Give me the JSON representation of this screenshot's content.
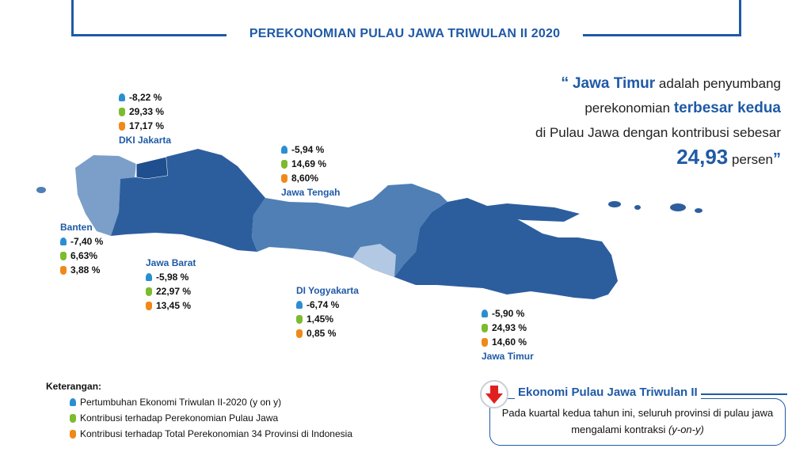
{
  "header": {
    "title": "PEREKONOMIAN PULAU JAWA TRIWULAN II 2020"
  },
  "colors": {
    "accent": "#1f5aa6",
    "dark_blue": "#2c5e9e",
    "mid_blue": "#4f7fb5",
    "light_blue": "#7b9fc9",
    "growth_icon": "#2a8fd0",
    "jawa_icon": "#7dbb2e",
    "nasional_icon": "#ef8a1a",
    "down_arrow": "#e02020"
  },
  "quote": {
    "open_mark": "“",
    "highlight_province": "Jawa Timur",
    "text1": "adalah penyumbang",
    "text2": "perekonomian",
    "highlight_rank": "terbesar kedua",
    "text3": "di Pulau Jawa dengan kontribusi sebesar",
    "value": "24,93",
    "unit": "persen",
    "close_mark": "”"
  },
  "provinces": {
    "dki": {
      "name": "DKI Jakarta",
      "growth": "-8,22 %",
      "jawa": "29,33 %",
      "nasional": "17,17 %"
    },
    "jateng": {
      "name": "Jawa Tengah",
      "growth": "-5,94 %",
      "jawa": "14,69 %",
      "nasional": "8,60%"
    },
    "banten": {
      "name": "Banten",
      "growth": "-7,40 %",
      "jawa": "6,63%",
      "nasional": "3,88 %"
    },
    "jabar": {
      "name": "Jawa Barat",
      "growth": "-5,98 %",
      "jawa": "22,97 %",
      "nasional": "13,45 %"
    },
    "diy": {
      "name": "DI Yogyakarta",
      "growth": "-6,74 %",
      "jawa": "1,45%",
      "nasional": "0,85 %"
    },
    "jatim": {
      "name": "Jawa Timur",
      "growth": "-5,90 %",
      "jawa": "24,93 %",
      "nasional": "14,60 %"
    }
  },
  "legend": {
    "heading": "Keterangan:",
    "growth": "Pertumbuhan Ekonomi Triwulan II-2020 (y on y)",
    "jawa": "Kontribusi terhadap Perekonomian Pulau Jawa",
    "nasional": "Kontribusi terhadap Total Perekonomian 34 Provinsi di Indonesia"
  },
  "summary": {
    "title": "Ekonomi Pulau Jawa Triwulan II",
    "text": "Pada kuartal kedua tahun ini, seluruh provinsi di pulau jawa mengalami kontraksi",
    "suffix": "(y-on-y)"
  },
  "icons": {
    "growth": "growth-icon",
    "jawa": "money-bag-icon",
    "nasional": "money-bag-icon",
    "arrow": "down-arrow-icon"
  }
}
